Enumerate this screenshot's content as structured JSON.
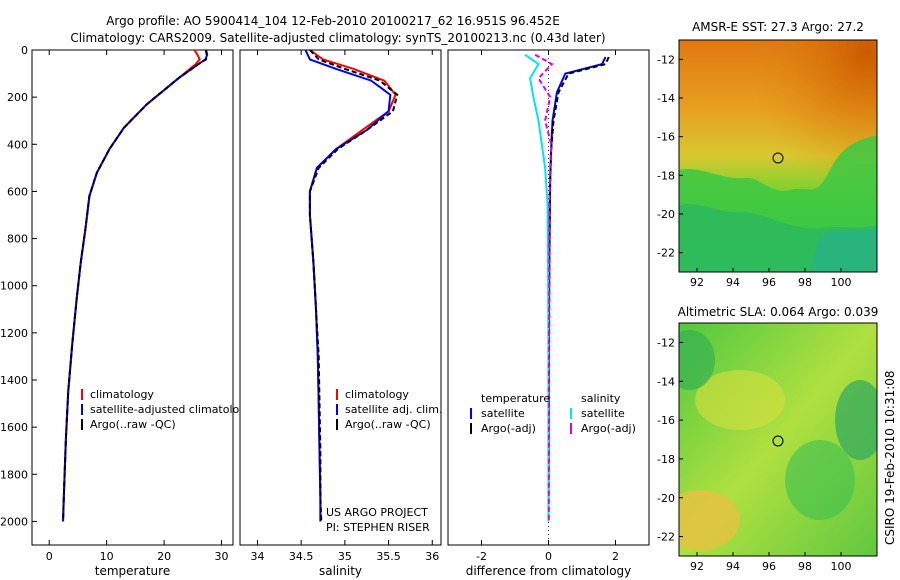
{
  "header": {
    "title_line1": "Argo profile: AO 5900414_104 12-Feb-2010 20100217_62 16.951S 96.452E",
    "title_line2": "Climatology: CARS2009. Satellite-adjusted climatology: synTS_20100213.nc (0.43d later)"
  },
  "side_label": "CSIRO 19-Feb-2010 10:31:08",
  "colors": {
    "climatology": "#ff0000",
    "satellite": "#0000ff",
    "argo": "#000000",
    "sat_diff_s": "#00e5ee",
    "argo_diff_s": "#e000e0"
  },
  "chart_data": [
    {
      "type": "line",
      "xlabel": "temperature",
      "ylabel": "",
      "xlim": [
        -3,
        32
      ],
      "ylim": [
        2100,
        0
      ],
      "xticks": [
        0,
        10,
        20,
        30
      ],
      "yticks": [
        0,
        200,
        400,
        600,
        800,
        1000,
        1200,
        1400,
        1600,
        1800,
        2000
      ],
      "legend": [
        "climatology",
        "satellite-adjusted climatology",
        "Argo(..raw -QC)"
      ],
      "series": [
        {
          "name": "climatology",
          "color": "#ff0000",
          "dash": "",
          "x": [
            25.3,
            25.8,
            26.2,
            25.5,
            22.5,
            17,
            13,
            10.5,
            8.3,
            7,
            6.3,
            5.5,
            4.8,
            4,
            3.3,
            2.9,
            2.6,
            2.4
          ],
          "y": [
            0,
            20,
            40,
            60,
            120,
            230,
            330,
            420,
            520,
            620,
            760,
            900,
            1050,
            1250,
            1450,
            1650,
            1850,
            2000
          ]
        },
        {
          "name": "satellite-adjusted climatology",
          "color": "#0000ff",
          "dash": "",
          "x": [
            27.3,
            27.5,
            27.2,
            26,
            22.5,
            17,
            13,
            10.5,
            8.3,
            7,
            6.3,
            5.5,
            4.8,
            4,
            3.3,
            2.9,
            2.6,
            2.4
          ],
          "y": [
            0,
            20,
            40,
            60,
            120,
            230,
            330,
            420,
            520,
            620,
            760,
            900,
            1050,
            1250,
            1450,
            1650,
            1850,
            2000
          ]
        },
        {
          "name": "Argo(..raw -QC)",
          "color": "#000000",
          "dash": "5,3",
          "x": [
            27.3,
            27.4,
            27.3,
            26,
            22.5,
            17,
            13,
            10.5,
            8.3,
            7,
            6.3,
            5.5,
            4.8,
            4,
            3.3,
            2.9,
            2.6,
            2.4
          ],
          "y": [
            0,
            20,
            40,
            60,
            120,
            230,
            330,
            420,
            520,
            620,
            760,
            900,
            1050,
            1250,
            1450,
            1650,
            1850,
            2000
          ]
        }
      ]
    },
    {
      "type": "line",
      "xlabel": "salinity",
      "ylabel": "",
      "xlim": [
        33.8,
        36.1
      ],
      "ylim": [
        2100,
        0
      ],
      "xticks": [
        34,
        34.5,
        35,
        35.5,
        36
      ],
      "yticks": [],
      "legend": [
        "climatology",
        "satellite adj. clim.",
        "Argo(..raw -QC)"
      ],
      "annotation": [
        "US ARGO PROJECT",
        "PI: STEPHEN RISER"
      ],
      "series": [
        {
          "name": "climatology",
          "color": "#ff0000",
          "dash": "",
          "x": [
            34.6,
            34.75,
            35.1,
            35.45,
            35.58,
            35.5,
            35.2,
            34.9,
            34.68,
            34.6,
            34.6,
            34.64,
            34.67,
            34.69,
            34.7,
            34.71,
            34.72,
            34.72
          ],
          "y": [
            0,
            40,
            80,
            130,
            190,
            260,
            340,
            420,
            500,
            600,
            700,
            900,
            1100,
            1300,
            1500,
            1700,
            1900,
            2000
          ]
        },
        {
          "name": "satellite adj. clim.",
          "color": "#0000ff",
          "dash": "",
          "x": [
            34.55,
            34.6,
            34.9,
            35.3,
            35.52,
            35.5,
            35.25,
            34.9,
            34.68,
            34.6,
            34.6,
            34.64,
            34.67,
            34.69,
            34.7,
            34.71,
            34.72,
            34.72
          ],
          "y": [
            0,
            40,
            80,
            130,
            190,
            260,
            340,
            420,
            500,
            600,
            700,
            900,
            1100,
            1300,
            1500,
            1700,
            1900,
            2000
          ]
        },
        {
          "name": "Argo(..raw -QC)",
          "color": "#000000",
          "dash": "5,3",
          "x": [
            34.6,
            34.7,
            35.0,
            35.4,
            35.6,
            35.55,
            35.25,
            34.92,
            34.7,
            34.6,
            34.6,
            34.64,
            34.67,
            34.7,
            34.71,
            34.72,
            34.72,
            34.73
          ],
          "y": [
            0,
            40,
            80,
            130,
            190,
            260,
            340,
            420,
            500,
            600,
            700,
            900,
            1100,
            1300,
            1500,
            1700,
            1900,
            2000
          ]
        }
      ]
    },
    {
      "type": "line",
      "xlabel": "difference from climatology",
      "ylabel": "",
      "xlim": [
        -3,
        3
      ],
      "ylim": [
        2100,
        0
      ],
      "xticks": [
        -2,
        0,
        2
      ],
      "yticks": [],
      "legend": [
        "temperature",
        "satellite",
        "Argo(-adj)",
        "salinity",
        "satellite",
        "Argo(-adj)"
      ],
      "series": [
        {
          "name": "satellite",
          "color": "#0000ff",
          "dash": "",
          "x": [
            1.7,
            1.6,
            0.5,
            0.25,
            0.12,
            0.08,
            0.05,
            0.04,
            0.03,
            0.02,
            0.01,
            0.01,
            0,
            0
          ],
          "y": [
            30,
            60,
            100,
            180,
            300,
            420,
            550,
            700,
            850,
            1000,
            1200,
            1500,
            1800,
            2000
          ]
        },
        {
          "name": "Argo(-adj)",
          "color": "#000000",
          "dash": "5,3",
          "x": [
            1.8,
            1.7,
            0.6,
            0.3,
            0.15,
            0.08,
            0.05,
            0.04,
            0.03,
            0.02,
            0.02,
            0.01,
            0.01,
            0
          ],
          "y": [
            30,
            60,
            100,
            180,
            300,
            420,
            550,
            700,
            850,
            1000,
            1200,
            1500,
            1800,
            2000
          ]
        },
        {
          "name": "satellite",
          "color": "#00e5ee",
          "dash": "",
          "x": [
            -0.7,
            -0.3,
            -0.55,
            -0.45,
            -0.3,
            -0.2,
            -0.1,
            -0.03,
            -0.02,
            -0.01,
            0,
            0,
            0,
            0
          ],
          "y": [
            20,
            60,
            120,
            200,
            300,
            400,
            500,
            650,
            800,
            1000,
            1300,
            1600,
            1800,
            2000
          ]
        },
        {
          "name": "Argo(-adj)",
          "color": "#e000e0",
          "dash": "5,3",
          "x": [
            -0.4,
            0.1,
            -0.3,
            0.05,
            -0.1,
            0.08,
            0.05,
            0.03,
            0.02,
            0.02,
            0.01,
            0.01,
            0.01,
            0.01
          ],
          "y": [
            20,
            60,
            120,
            200,
            300,
            400,
            500,
            650,
            800,
            1000,
            1300,
            1600,
            1800,
            2000
          ]
        }
      ]
    },
    {
      "type": "heatmap",
      "title": "AMSR-E SST: 27.3 Argo: 27.2",
      "xlim": [
        91,
        102
      ],
      "ylim": [
        -23,
        -11
      ],
      "xticks": [
        92,
        94,
        96,
        98,
        100
      ],
      "yticks": [
        -12,
        -14,
        -16,
        -18,
        -20,
        -22
      ],
      "marker": {
        "x": 96.45,
        "y": -16.95
      }
    },
    {
      "type": "heatmap",
      "title": "Altimetric SLA: 0.064 Argo: 0.039",
      "xlim": [
        91,
        102
      ],
      "ylim": [
        -23,
        -11
      ],
      "xticks": [
        92,
        94,
        96,
        98,
        100
      ],
      "yticks": [
        -12,
        -14,
        -16,
        -18,
        -20,
        -22
      ],
      "marker": {
        "x": 96.45,
        "y": -16.95
      }
    }
  ]
}
